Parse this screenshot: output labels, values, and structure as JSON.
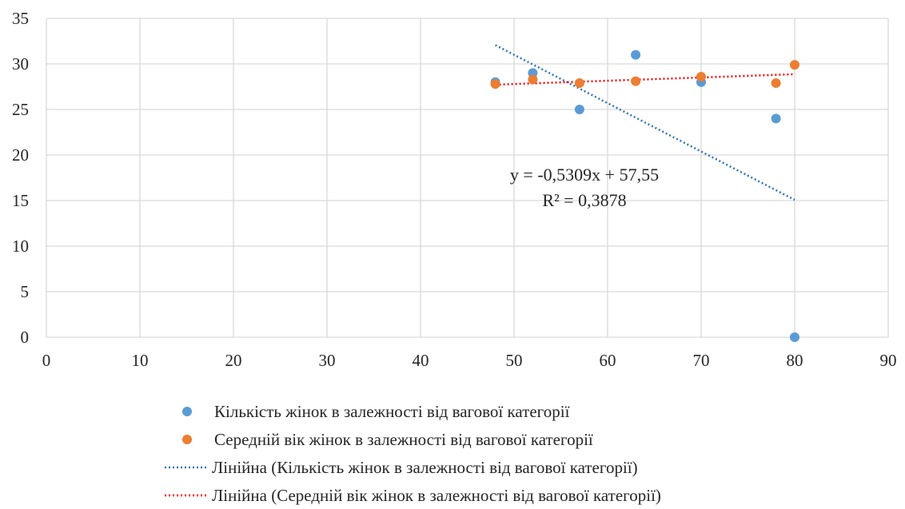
{
  "chart_data": {
    "type": "scatter",
    "title": "",
    "xlabel": "",
    "ylabel": "",
    "xlim": [
      0,
      90
    ],
    "ylim": [
      0,
      35
    ],
    "x_ticks": [
      0,
      10,
      20,
      30,
      40,
      50,
      60,
      70,
      80,
      90
    ],
    "y_ticks": [
      0,
      5,
      10,
      15,
      20,
      25,
      30,
      35
    ],
    "grid": true,
    "legend_position": "bottom",
    "series": [
      {
        "name": "Кількість жінок в залежності від вагової категорії",
        "color": "#5B9BD5",
        "points": [
          {
            "x": 48,
            "y": 28
          },
          {
            "x": 52,
            "y": 29
          },
          {
            "x": 57,
            "y": 25
          },
          {
            "x": 63,
            "y": 31
          },
          {
            "x": 70,
            "y": 28
          },
          {
            "x": 78,
            "y": 24
          },
          {
            "x": 80,
            "y": 0
          }
        ]
      },
      {
        "name": "Середній вік жінок в залежності від вагової категорії",
        "color": "#ED7D31",
        "points": [
          {
            "x": 48,
            "y": 27.8
          },
          {
            "x": 52,
            "y": 28.3
          },
          {
            "x": 57,
            "y": 27.9
          },
          {
            "x": 63,
            "y": 28.1
          },
          {
            "x": 70,
            "y": 28.6
          },
          {
            "x": 78,
            "y": 27.9
          },
          {
            "x": 80,
            "y": 29.9
          }
        ]
      }
    ],
    "trendlines": [
      {
        "name": "Лінійна (Кількість жінок в залежності від вагової категорії)",
        "color": "#2E75B6",
        "slope": -0.5309,
        "intercept": 57.55,
        "x_range": [
          48,
          80
        ]
      },
      {
        "name": "Лінійна (Середній вік жінок в залежності від вагової категорії)",
        "color": "#FF0000",
        "slope": 0.0359,
        "intercept": 26.0,
        "x_range": [
          48,
          80
        ]
      }
    ],
    "annotations": {
      "equation": "y = -0,5309x + 57,55",
      "r_squared": "R² = 0,3878"
    }
  }
}
